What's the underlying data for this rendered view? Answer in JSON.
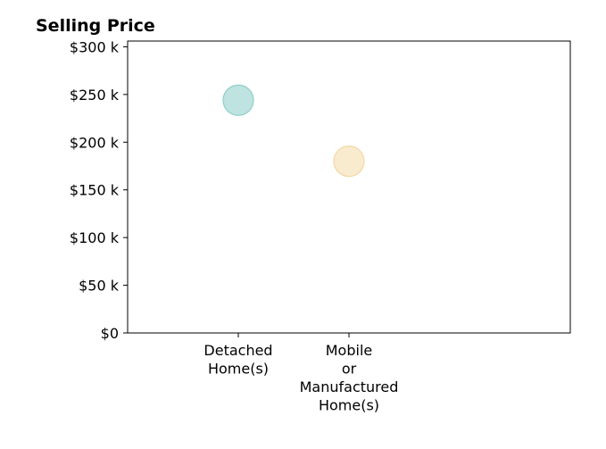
{
  "chart_data": {
    "type": "scatter",
    "title": "Selling Price",
    "xlabel": "",
    "ylabel": "",
    "categories": [
      [
        "Detached",
        "Home(s)"
      ],
      [
        "Mobile",
        "or",
        "Manufactured",
        "Home(s)"
      ]
    ],
    "values": [
      244000,
      180000
    ],
    "point_colors": [
      "#a8dad5",
      "#f7e4bd"
    ],
    "point_edge_colors": [
      "#8fcfc8",
      "#f2d8a5"
    ],
    "ylim": [
      0,
      306000
    ],
    "y_ticks": [
      0,
      50000,
      100000,
      150000,
      200000,
      250000,
      300000
    ],
    "y_tick_labels": [
      "$0",
      "$50 k",
      "$100 k",
      "$150 k",
      "$200 k",
      "$250 k",
      "$300 k"
    ],
    "grid": false,
    "legend": "none"
  }
}
